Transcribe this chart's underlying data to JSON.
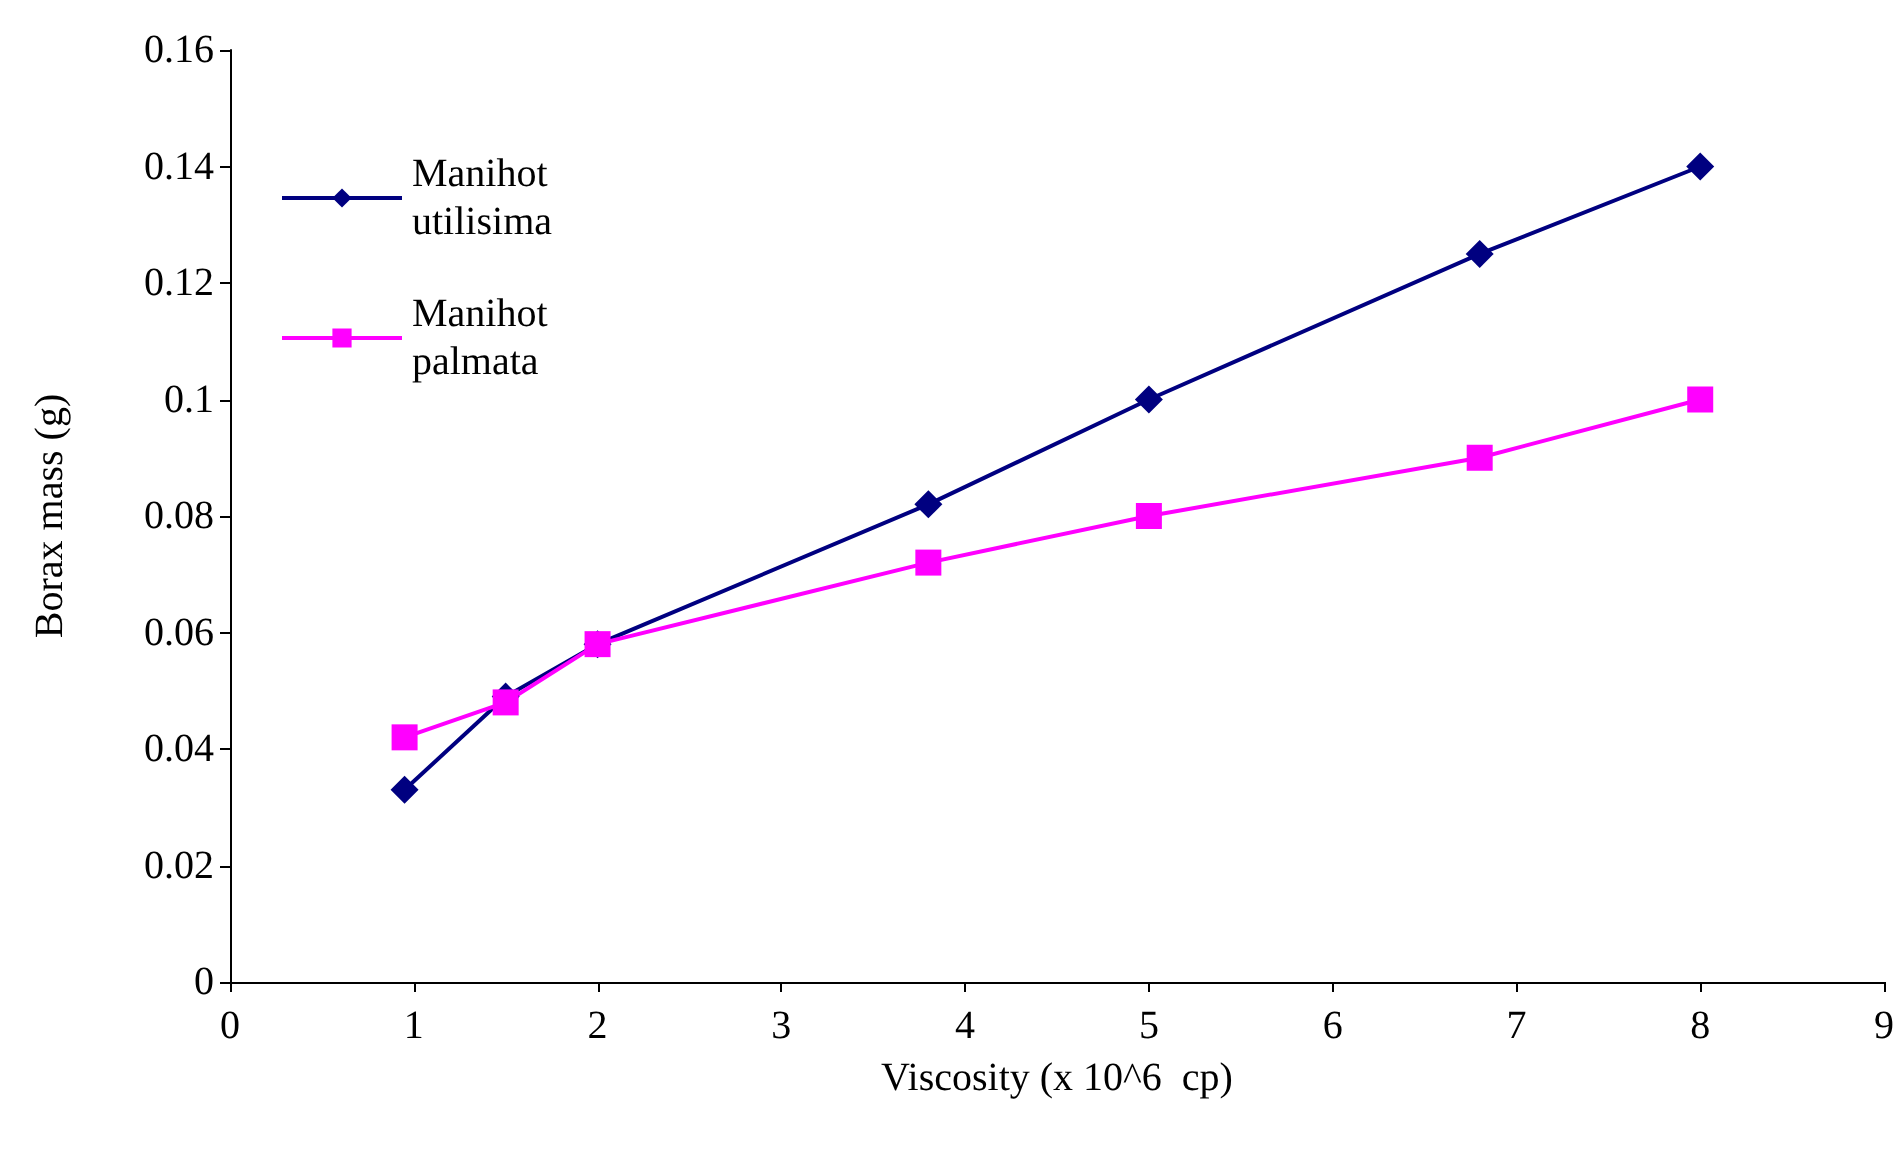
{
  "chart_data": {
    "type": "line",
    "xlabel": "Viscosity (x 10^6  cp)",
    "ylabel": "Borax mass (g)",
    "x": [
      0.95,
      1.5,
      2,
      3.8,
      5,
      6.8,
      8
    ],
    "series": [
      {
        "name": "Manihot utilisima",
        "color": "#000080",
        "marker": "diamond",
        "values": [
          0.033,
          0.049,
          0.058,
          0.082,
          0.1,
          0.125,
          0.14
        ]
      },
      {
        "name": "Manihot palmata",
        "color": "#ff00ff",
        "marker": "square",
        "values": [
          0.042,
          0.048,
          0.058,
          0.072,
          0.08,
          0.09,
          0.1
        ]
      }
    ],
    "xlim": [
      0,
      9
    ],
    "xticks": [
      0,
      1,
      2,
      3,
      4,
      5,
      6,
      7,
      8,
      9
    ],
    "ylim": [
      0,
      0.16
    ],
    "yticks": [
      0,
      0.02,
      0.04,
      0.06,
      0.08,
      0.1,
      0.12,
      0.14,
      0.16
    ],
    "grid": false,
    "legend": "top left",
    "line_style": "solid"
  }
}
